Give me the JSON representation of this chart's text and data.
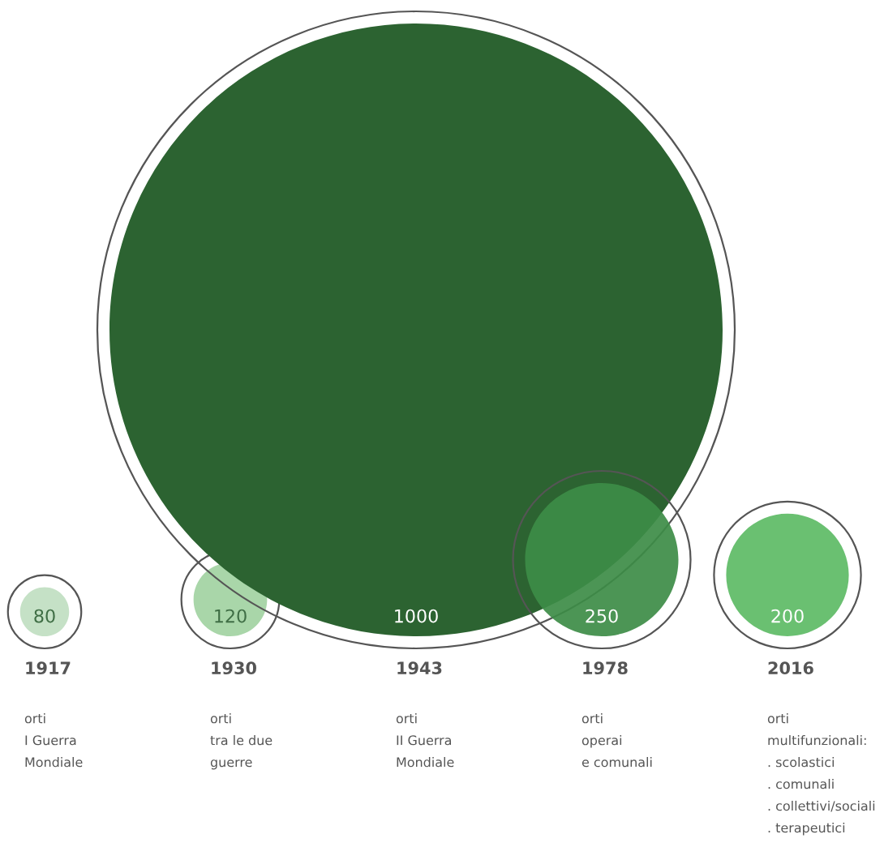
{
  "chart_data": {
    "type": "other",
    "categories": [
      "1917",
      "1930",
      "1943",
      "1978",
      "2016"
    ],
    "values": [
      80,
      120,
      1000,
      250,
      200
    ],
    "colors": [
      "#c5e1c6",
      "#a9d6a9",
      "#2c6331",
      "#3d8c47",
      "#5dbb65"
    ],
    "data_labels": true,
    "annotations": [
      "orti\nI Guerra\nMondiale",
      "orti\ntra le due\nguerre",
      "orti\nII Guerra\nMondiale",
      "orti\noperai\ne comunali",
      "orti\nmultifunzionali:\n. scolastici\n. comunali\n. collettivi/sociali\n. terapeutici"
    ]
  }
}
